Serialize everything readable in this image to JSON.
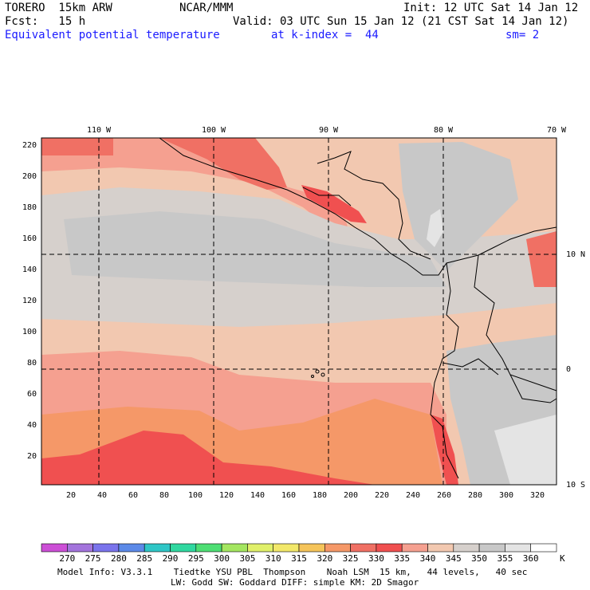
{
  "header": {
    "model": "TORERO  15km ARW",
    "center": "NCAR/MMM",
    "init": "Init: 12 UTC Sat 14 Jan 12",
    "fcst": "Fcst:   15 h",
    "valid": "Valid: 03 UTC Sun 15 Jan 12 (21 CST Sat 14 Jan 12)",
    "field": "Equivalent potential temperature",
    "level": "at k-index =  44",
    "smooth": "sm= 2"
  },
  "map": {
    "lon_labels": [
      "110 W",
      "100 W",
      "90 W",
      "80 W",
      "70 W"
    ],
    "lat_labels": [
      "10 N",
      "0",
      "10 S"
    ],
    "y_ticks": [
      "220",
      "200",
      "180",
      "160",
      "140",
      "120",
      "100",
      "80",
      "60",
      "40",
      "20"
    ],
    "x_ticks": [
      "20",
      "40",
      "60",
      "80",
      "100",
      "120",
      "140",
      "160",
      "180",
      "200",
      "220",
      "240",
      "260",
      "280",
      "300",
      "320"
    ],
    "grid_range": {
      "x": [
        1,
        330
      ],
      "y": [
        1,
        225
      ]
    }
  },
  "legend": {
    "labels": [
      "270",
      "275",
      "280",
      "285",
      "290",
      "295",
      "300",
      "305",
      "310",
      "315",
      "320",
      "325",
      "330",
      "335",
      "340",
      "345",
      "350",
      "355",
      "360"
    ],
    "colors": [
      "#cc4fd6",
      "#a374dc",
      "#7a74ec",
      "#5c8ae8",
      "#2fc6c6",
      "#30d8a0",
      "#4ede74",
      "#a4e660",
      "#e0f06a",
      "#f2e86a",
      "#f5c45a",
      "#f59868",
      "#f07064",
      "#f05050",
      "#f5a090",
      "#f2c8b0",
      "#d6d0cc",
      "#c8c8c8",
      "#e4e4e4",
      "#ffffff"
    ],
    "unit": "K"
  },
  "footer": {
    "line1": "Model Info: V3.3.1    Tiedtke YSU PBL  Thompson    Noah LSM  15 km,   44 levels,   40 sec",
    "line2": "LW: Godd SW: Goddard DIFF: simple KM: 2D Smagor"
  }
}
